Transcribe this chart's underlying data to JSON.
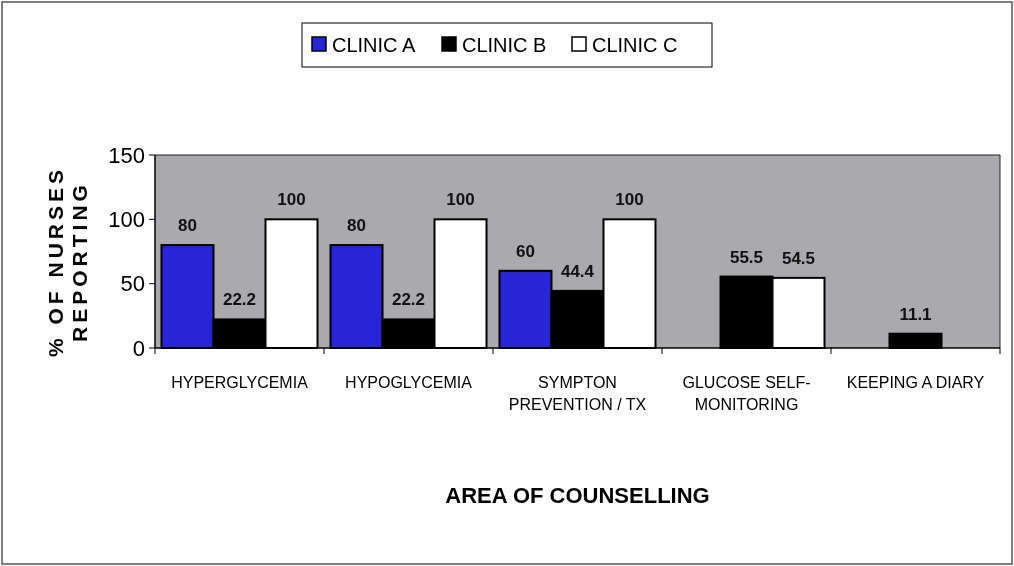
{
  "chart_data": {
    "type": "bar",
    "categories": [
      "HYPERGLYCEMIA",
      "HYPOGLYCEMIA",
      "SYMPTON PREVENTION / TX",
      "GLUCOSE SELF-MONITORING",
      "KEEPING A DIARY"
    ],
    "series": [
      {
        "name": "CLINIC A",
        "color": "#2626d8",
        "values": [
          80,
          80,
          60,
          null,
          null
        ]
      },
      {
        "name": "CLINIC B",
        "color": "#000000",
        "values": [
          22.2,
          22.2,
          44.4,
          55.5,
          11.1
        ]
      },
      {
        "name": "CLINIC C",
        "color": "#ffffff",
        "values": [
          100,
          100,
          100,
          54.5,
          null
        ]
      }
    ],
    "xlabel": "AREA OF COUNSELLING",
    "ylabel": "% OF NURSES REPORTING",
    "ylim": [
      0,
      150
    ],
    "yticks": [
      0,
      50,
      100,
      150
    ],
    "data_labels": true,
    "legend": "top",
    "grid": false
  }
}
